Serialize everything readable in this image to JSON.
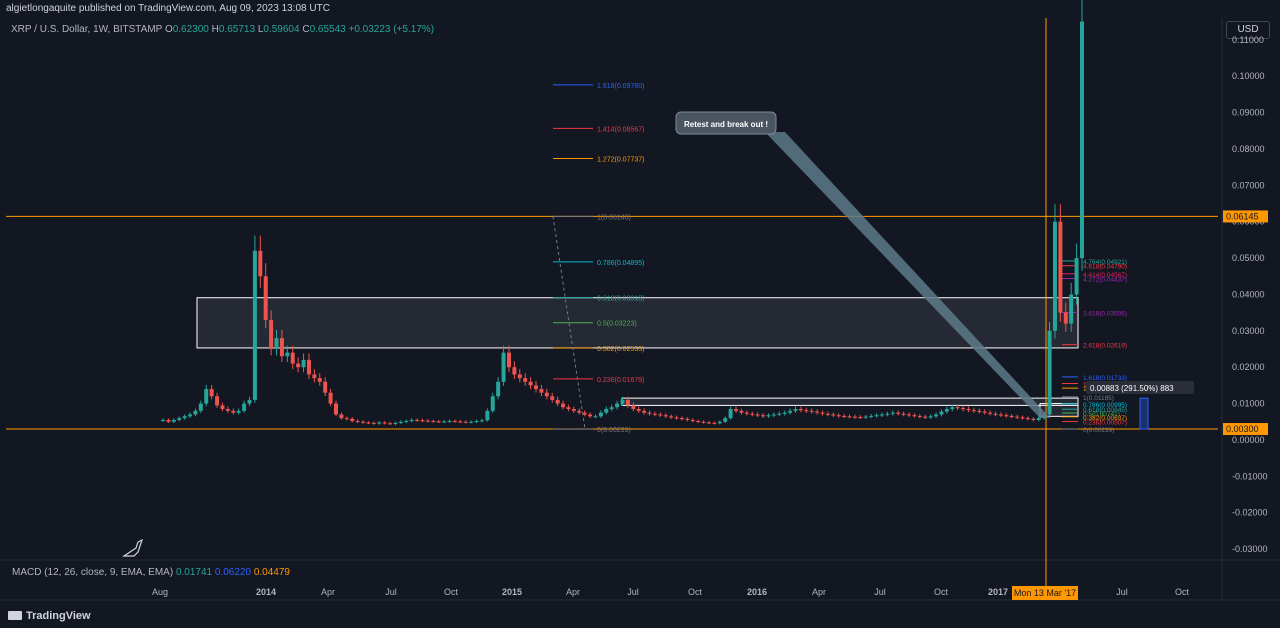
{
  "header": {
    "published": "algietlongaquite published on TradingView.com, Aug 09, 2023 13:08 UTC",
    "symbol": "XRP / U.S. Dollar, 1W, BITSTAMP",
    "ohlc": {
      "o_label": "O",
      "o": "0.62300",
      "h_label": "H",
      "h": "0.65713",
      "l_label": "L",
      "l": "0.59604",
      "c_label": "C",
      "c": "0.65543",
      "change": "+0.03223 (+5.17%)"
    },
    "currency": "USD"
  },
  "indicator": {
    "macd_label": "MACD (12, 26, close, 9, EMA, EMA)",
    "v1": "0.01741",
    "v2": "0.06220",
    "v3": "0.04479",
    "c1": "#26a69a",
    "c2": "#2962ff",
    "c3": "#ff9800"
  },
  "footer": {
    "brand": "TradingView"
  },
  "colors": {
    "up": "#26a69a",
    "down": "#ef5350",
    "level": "#ff9800",
    "bg": "#131722"
  },
  "chart_data": {
    "type": "candlestick",
    "ylim": [
      -0.033,
      0.116
    ],
    "y_ticks": [
      "0.11000",
      "0.10000",
      "0.09000",
      "0.08000",
      "0.07000",
      "0.06000",
      "0.05000",
      "0.04000",
      "0.03000",
      "0.02000",
      "0.01000",
      "0.00000",
      "-0.01000",
      "-0.02000",
      "-0.03000"
    ],
    "x_ticks": [
      "Aug",
      "2014",
      "Apr",
      "Jul",
      "Oct",
      "2015",
      "Apr",
      "Jul",
      "Oct",
      "2016",
      "Apr",
      "Jul",
      "Oct",
      "2017",
      "Jul",
      "Oct"
    ],
    "x_tick_bold": [
      "2014",
      "2015",
      "2016",
      "2017"
    ],
    "crosshair_x_label": "Mon 13 Mar '17",
    "horizontal_levels": [
      {
        "value": 0.06145,
        "label": "0.06145"
      },
      {
        "value": 0.003,
        "label": "0.00300"
      }
    ],
    "annotation": {
      "text": "Retest and break out !"
    },
    "measure_label": "0.00883 (291.50%) 883",
    "fib_left": [
      {
        "label": "1.618(0.09760)",
        "value": 0.0976,
        "color": "#2962ff"
      },
      {
        "label": "1.414(0.08567)",
        "value": 0.08567,
        "color": "#f23645"
      },
      {
        "label": "1.272(0.07737)",
        "value": 0.07737,
        "color": "#ff9800"
      },
      {
        "label": "1(0.06146)",
        "value": 0.06146,
        "color": "#787b86"
      },
      {
        "label": "0.786(0.04895)",
        "value": 0.04895,
        "color": "#00bcd4"
      },
      {
        "label": "0.618(0.03913)",
        "value": 0.03913,
        "color": "#26a69a"
      },
      {
        "label": "0.5(0.03223)",
        "value": 0.03223,
        "color": "#4caf50"
      },
      {
        "label": "0.382(0.02533)",
        "value": 0.02533,
        "color": "#ff9800"
      },
      {
        "label": "0.236(0.01679)",
        "value": 0.01679,
        "color": "#f23645"
      },
      {
        "label": "0(0.00299)",
        "value": 0.00299,
        "color": "#787b86"
      }
    ],
    "fib_right": [
      {
        "label": "4.764(0.04921)",
        "value": 0.04921,
        "color": "#26a69a"
      },
      {
        "label": "4.618(0.04790)",
        "value": 0.0479,
        "color": "#f23645"
      },
      {
        "label": "4.414(0.04567)",
        "value": 0.04567,
        "color": "#e91e63"
      },
      {
        "label": "4.272(0.04437)",
        "value": 0.04437,
        "color": "#9c27b0"
      },
      {
        "label": "3.618(0.03506)",
        "value": 0.03506,
        "color": "#9c27b0"
      },
      {
        "label": "2.618(0.02619)",
        "value": 0.02619,
        "color": "#f23645"
      },
      {
        "label": "1.618(0.01733)",
        "value": 0.01733,
        "color": "#2962ff"
      },
      {
        "label": "1.414(0.01552)",
        "value": 0.01552,
        "color": "#f23645"
      },
      {
        "label": "1.272(0.01425)",
        "value": 0.01425,
        "color": "#ff9800"
      },
      {
        "label": "1(0.01185)",
        "value": 0.01185,
        "color": "#787b86"
      },
      {
        "label": "0.786(0.00995)",
        "value": 0.00995,
        "color": "#00bcd4"
      },
      {
        "label": "0.618(0.00845)",
        "value": 0.00845,
        "color": "#26a69a"
      },
      {
        "label": "0.5(0.00741)",
        "value": 0.00741,
        "color": "#4caf50"
      },
      {
        "label": "0.382(0.00637)",
        "value": 0.00637,
        "color": "#ff9800"
      },
      {
        "label": "0.236(0.00507)",
        "value": 0.00507,
        "color": "#f23645"
      },
      {
        "label": "0(0.00299)",
        "value": 0.00299,
        "color": "#787b86"
      }
    ],
    "zones": [
      {
        "top": 0.0391,
        "bottom": 0.0253
      },
      {
        "top": 0.0115,
        "bottom": 0.0095
      },
      {
        "top": 0.01,
        "bottom": 0.0065
      }
    ],
    "candles_close": [
      0.0055,
      0.005,
      0.0055,
      0.006,
      0.0065,
      0.007,
      0.008,
      0.01,
      0.014,
      0.012,
      0.0095,
      0.0085,
      0.008,
      0.0075,
      0.008,
      0.01,
      0.011,
      0.052,
      0.045,
      0.033,
      0.025,
      0.028,
      0.023,
      0.024,
      0.021,
      0.02,
      0.022,
      0.018,
      0.017,
      0.016,
      0.013,
      0.01,
      0.007,
      0.006,
      0.0058,
      0.0052,
      0.005,
      0.0048,
      0.0047,
      0.0045,
      0.0048,
      0.0046,
      0.0044,
      0.0047,
      0.005,
      0.0052,
      0.0055,
      0.0054,
      0.0053,
      0.0052,
      0.0051,
      0.005,
      0.0051,
      0.0052,
      0.0051,
      0.005,
      0.0049,
      0.005,
      0.0052,
      0.0054,
      0.008,
      0.012,
      0.016,
      0.024,
      0.02,
      0.018,
      0.017,
      0.016,
      0.015,
      0.014,
      0.013,
      0.012,
      0.011,
      0.01,
      0.009,
      0.0085,
      0.008,
      0.0075,
      0.007,
      0.0065,
      0.0065,
      0.0075,
      0.0085,
      0.009,
      0.01,
      0.011,
      0.0095,
      0.0085,
      0.008,
      0.0075,
      0.0072,
      0.007,
      0.0068,
      0.0065,
      0.0062,
      0.006,
      0.0058,
      0.0055,
      0.0052,
      0.005,
      0.0048,
      0.0047,
      0.0046,
      0.005,
      0.006,
      0.0085,
      0.008,
      0.0075,
      0.0072,
      0.007,
      0.0068,
      0.0065,
      0.0068,
      0.007,
      0.0072,
      0.0075,
      0.008,
      0.0085,
      0.0082,
      0.008,
      0.0078,
      0.0075,
      0.0072,
      0.007,
      0.0068,
      0.0066,
      0.0065,
      0.0064,
      0.0063,
      0.0062,
      0.0064,
      0.0066,
      0.0068,
      0.007,
      0.0072,
      0.0075,
      0.0072,
      0.007,
      0.0068,
      0.0066,
      0.0064,
      0.0062,
      0.0065,
      0.007,
      0.0078,
      0.0085,
      0.009,
      0.0088,
      0.0085,
      0.0082,
      0.008,
      0.0078,
      0.0075,
      0.0072,
      0.007,
      0.0068,
      0.0066,
      0.0064,
      0.0062,
      0.006,
      0.0058,
      0.0055,
      0.006,
      0.007,
      0.03,
      0.06,
      0.035,
      0.032,
      0.04,
      0.05,
      0.115
    ]
  }
}
